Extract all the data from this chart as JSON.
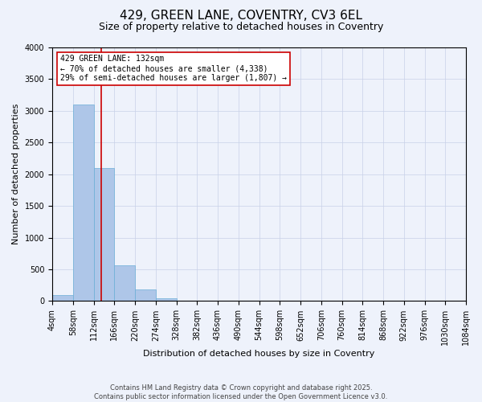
{
  "title_line1": "429, GREEN LANE, COVENTRY, CV3 6EL",
  "title_line2": "Size of property relative to detached houses in Coventry",
  "xlabel": "Distribution of detached houses by size in Coventry",
  "ylabel": "Number of detached properties",
  "footer_line1": "Contains HM Land Registry data © Crown copyright and database right 2025.",
  "footer_line2": "Contains public sector information licensed under the Open Government Licence v3.0.",
  "annotation_line1": "429 GREEN LANE: 132sqm",
  "annotation_line2": "← 70% of detached houses are smaller (4,338)",
  "annotation_line3": "29% of semi-detached houses are larger (1,807) →",
  "property_size": 132,
  "bar_edges": [
    4,
    58,
    112,
    166,
    220,
    274,
    328,
    382,
    436,
    490,
    544,
    598,
    652,
    706,
    760,
    814,
    868,
    922,
    976,
    1030,
    1084
  ],
  "bar_heights": [
    100,
    3100,
    2100,
    560,
    180,
    50,
    10,
    5,
    2,
    1,
    0,
    0,
    0,
    0,
    0,
    0,
    0,
    0,
    0,
    0
  ],
  "bar_color": "#aec6e8",
  "bar_edge_color": "#6baed6",
  "red_line_color": "#cc0000",
  "background_color": "#eef2fb",
  "ylim": [
    0,
    4000
  ],
  "yticks": [
    0,
    500,
    1000,
    1500,
    2000,
    2500,
    3000,
    3500,
    4000
  ],
  "annotation_box_color": "#ffffff",
  "annotation_box_edge": "#cc0000",
  "grid_color": "#c8d0e8",
  "title_fontsize": 11,
  "subtitle_fontsize": 9,
  "xlabel_fontsize": 8,
  "ylabel_fontsize": 8,
  "tick_fontsize": 7,
  "footer_fontsize": 6,
  "annotation_fontsize": 7
}
